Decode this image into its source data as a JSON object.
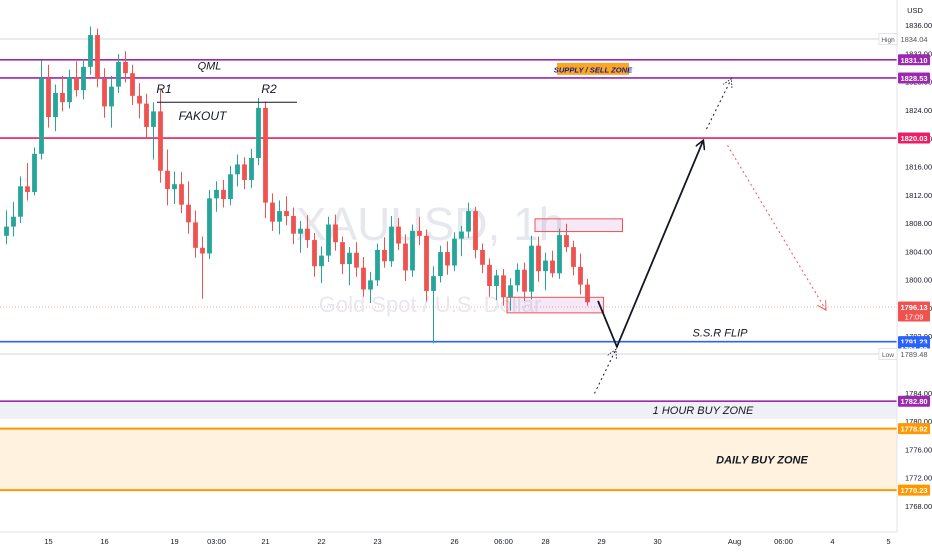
{
  "chart_data": {
    "type": "candlestick",
    "title": "",
    "watermark": {
      "symbol": "XAUUSD, 1h",
      "description": "Gold Spot / U.S. Dollar"
    },
    "currency": "USD",
    "colors": {
      "up": "#26a69a",
      "down": "#ef5350",
      "purple": "#9c27b0",
      "red_level": "#e91e63",
      "blue_level": "#2962ff",
      "orange_zone": "#ff9800",
      "zone_fill": "#fff3e0",
      "supply_label_bg": "#f9a825",
      "current_price_bg": "#ef5350",
      "path_arrow": "#131722"
    },
    "y_axis": {
      "range": [
        1766,
        1838
      ],
      "ticks": [
        1768,
        1772,
        1776,
        1780,
        1784,
        1792,
        1796,
        1800,
        1804,
        1808,
        1812,
        1816,
        1820,
        1824,
        1828,
        1832,
        1836
      ]
    },
    "x_axis": {
      "ticks": [
        {
          "label": "15",
          "bar": 6
        },
        {
          "label": "16",
          "bar": 14
        },
        {
          "label": "19",
          "bar": 24
        },
        {
          "label": "03:00",
          "bar": 30
        },
        {
          "label": "21",
          "bar": 37
        },
        {
          "label": "22",
          "bar": 45
        },
        {
          "label": "23",
          "bar": 53
        },
        {
          "label": "26",
          "bar": 64
        },
        {
          "label": "06:00",
          "bar": 71
        },
        {
          "label": "28",
          "bar": 77
        },
        {
          "label": "29",
          "bar": 85
        },
        {
          "label": "30",
          "bar": 93
        },
        {
          "label": "Aug",
          "bar": 104
        },
        {
          "label": "06:00",
          "bar": 111
        },
        {
          "label": "4",
          "bar": 118
        },
        {
          "label": "5",
          "bar": 126
        }
      ]
    },
    "bar_slot_count": 128,
    "candles": [
      [
        1806.2,
        1809.8,
        1805.0,
        1807.5
      ],
      [
        1807.5,
        1811.0,
        1806.1,
        1808.9
      ],
      [
        1808.9,
        1814.6,
        1808.0,
        1813.2
      ],
      [
        1813.2,
        1816.5,
        1811.2,
        1812.4
      ],
      [
        1812.4,
        1818.7,
        1811.9,
        1817.8
      ],
      [
        1817.8,
        1831.0,
        1817.0,
        1828.5
      ],
      [
        1828.5,
        1830.4,
        1821.5,
        1823.0
      ],
      [
        1823.0,
        1827.6,
        1821.0,
        1826.4
      ],
      [
        1826.4,
        1828.8,
        1823.8,
        1825.1
      ],
      [
        1825.1,
        1829.7,
        1824.2,
        1828.6
      ],
      [
        1828.6,
        1830.9,
        1825.9,
        1826.8
      ],
      [
        1826.8,
        1831.2,
        1825.5,
        1830.1
      ],
      [
        1830.1,
        1835.8,
        1829.0,
        1834.6
      ],
      [
        1834.6,
        1835.5,
        1827.2,
        1828.4
      ],
      [
        1828.4,
        1829.9,
        1822.9,
        1824.5
      ],
      [
        1824.5,
        1828.8,
        1821.5,
        1827.3
      ],
      [
        1827.3,
        1831.9,
        1826.4,
        1830.8
      ],
      [
        1830.8,
        1832.3,
        1827.9,
        1829.2
      ],
      [
        1829.2,
        1830.4,
        1824.7,
        1826.0
      ],
      [
        1826.0,
        1827.8,
        1822.8,
        1824.9
      ],
      [
        1824.9,
        1826.3,
        1820.1,
        1821.6
      ],
      [
        1821.6,
        1825.1,
        1817.0,
        1823.8
      ],
      [
        1823.8,
        1826.9,
        1813.7,
        1815.4
      ],
      [
        1815.4,
        1818.4,
        1810.5,
        1812.8
      ],
      [
        1812.8,
        1815.3,
        1810.7,
        1813.5
      ],
      [
        1813.5,
        1815.2,
        1809.4,
        1810.6
      ],
      [
        1810.6,
        1813.9,
        1806.5,
        1808.1
      ],
      [
        1808.1,
        1809.8,
        1803.1,
        1804.5
      ],
      [
        1804.5,
        1806.1,
        1797.3,
        1803.7
      ],
      [
        1803.7,
        1812.7,
        1802.9,
        1811.5
      ],
      [
        1811.5,
        1813.9,
        1809.6,
        1812.7
      ],
      [
        1812.7,
        1814.1,
        1810.2,
        1811.4
      ],
      [
        1811.4,
        1816.1,
        1810.5,
        1814.9
      ],
      [
        1814.9,
        1817.7,
        1813.2,
        1816.3
      ],
      [
        1816.3,
        1817.3,
        1812.8,
        1814.1
      ],
      [
        1814.1,
        1818.5,
        1813.0,
        1817.2
      ],
      [
        1817.2,
        1825.7,
        1816.2,
        1824.3
      ],
      [
        1824.3,
        1825.2,
        1808.7,
        1810.9
      ],
      [
        1810.9,
        1812.2,
        1806.9,
        1808.2
      ],
      [
        1808.2,
        1811.2,
        1806.4,
        1809.7
      ],
      [
        1809.7,
        1811.8,
        1807.7,
        1809.0
      ],
      [
        1809.0,
        1810.2,
        1805.0,
        1806.5
      ],
      [
        1806.5,
        1808.3,
        1803.8,
        1807.2
      ],
      [
        1807.2,
        1809.1,
        1804.5,
        1805.6
      ],
      [
        1805.6,
        1806.6,
        1800.4,
        1801.9
      ],
      [
        1801.9,
        1804.7,
        1799.5,
        1803.4
      ],
      [
        1803.4,
        1808.9,
        1802.5,
        1807.8
      ],
      [
        1807.8,
        1809.2,
        1804.1,
        1805.3
      ],
      [
        1805.3,
        1806.1,
        1800.8,
        1802.2
      ],
      [
        1802.2,
        1804.6,
        1799.2,
        1803.8
      ],
      [
        1803.8,
        1805.3,
        1800.4,
        1801.7
      ],
      [
        1801.7,
        1803.2,
        1797.6,
        1798.6
      ],
      [
        1798.6,
        1801.1,
        1796.7,
        1799.9
      ],
      [
        1799.9,
        1805.1,
        1799.1,
        1804.2
      ],
      [
        1804.2,
        1806.0,
        1801.7,
        1802.6
      ],
      [
        1802.6,
        1809.0,
        1801.8,
        1807.5
      ],
      [
        1807.5,
        1808.7,
        1804.2,
        1805.1
      ],
      [
        1805.1,
        1806.4,
        1799.8,
        1801.3
      ],
      [
        1801.3,
        1807.8,
        1800.4,
        1806.9
      ],
      [
        1806.9,
        1808.9,
        1804.9,
        1806.2
      ],
      [
        1806.2,
        1807.1,
        1796.9,
        1798.4
      ],
      [
        1798.4,
        1801.9,
        1791.0,
        1800.5
      ],
      [
        1800.5,
        1804.8,
        1799.6,
        1803.9
      ],
      [
        1803.9,
        1805.4,
        1800.7,
        1802.0
      ],
      [
        1802.0,
        1806.7,
        1801.2,
        1805.8
      ],
      [
        1805.8,
        1807.6,
        1803.3,
        1806.8
      ],
      [
        1806.8,
        1810.9,
        1805.9,
        1809.7
      ],
      [
        1809.7,
        1810.3,
        1803.0,
        1804.2
      ],
      [
        1804.2,
        1805.1,
        1800.9,
        1802.1
      ],
      [
        1802.1,
        1803.0,
        1797.6,
        1799.1
      ],
      [
        1799.1,
        1801.4,
        1797.1,
        1800.6
      ],
      [
        1800.6,
        1801.5,
        1796.3,
        1797.5
      ],
      [
        1797.5,
        1800.2,
        1795.6,
        1799.2
      ],
      [
        1799.2,
        1802.3,
        1798.3,
        1801.4
      ],
      [
        1801.4,
        1802.4,
        1797.0,
        1798.3
      ],
      [
        1798.3,
        1806.2,
        1797.2,
        1804.8
      ],
      [
        1804.8,
        1806.1,
        1799.7,
        1801.2
      ],
      [
        1801.2,
        1803.8,
        1798.5,
        1802.7
      ],
      [
        1802.7,
        1804.1,
        1800.3,
        1800.9
      ],
      [
        1800.9,
        1807.2,
        1800.1,
        1806.3
      ],
      [
        1806.3,
        1807.9,
        1803.9,
        1804.6
      ],
      [
        1804.6,
        1805.5,
        1800.6,
        1801.8
      ],
      [
        1801.8,
        1803.7,
        1797.9,
        1799.3
      ],
      [
        1799.3,
        1800.1,
        1796.3,
        1796.8
      ]
    ],
    "levels": [
      {
        "name": "high",
        "price": 1834.04,
        "label": "High",
        "style": "thin"
      },
      {
        "name": "qml",
        "price": 1831.1,
        "label": "QML",
        "color": "purple"
      },
      {
        "name": "supply",
        "price": 1828.53,
        "label": "SUPPLY / SELL ZONE",
        "color": "purple"
      },
      {
        "name": "sell-1820",
        "price": 1820.03,
        "color": "red_level"
      },
      {
        "name": "ssr-flip",
        "price": 1791.23,
        "label": "S.S.R FLIP",
        "color": "blue_level"
      },
      {
        "name": "low",
        "price": 1789.48,
        "label": "Low",
        "style": "thin"
      },
      {
        "name": "one-hour-buy",
        "price": 1782.8,
        "label": "1 HOUR BUY ZONE",
        "color": "purple"
      },
      {
        "name": "daily-top",
        "price": 1778.92,
        "color": "orange_zone"
      },
      {
        "name": "daily-bottom",
        "price": 1770.23,
        "color": "orange_zone"
      }
    ],
    "zones": [
      {
        "name": "daily-buy-zone",
        "from": 1770.23,
        "to": 1778.92,
        "label": "DAILY BUY ZONE"
      },
      {
        "name": "one-hour-buy-band",
        "from": 1780.3,
        "to": 1782.8,
        "label": ""
      }
    ],
    "annotations": [
      {
        "name": "r1",
        "text": "R1",
        "bar": 22.5,
        "price": 1826.4
      },
      {
        "name": "r2",
        "text": "R2",
        "bar": 37.5,
        "price": 1826.4
      },
      {
        "name": "fakeout",
        "text": "FAKOUT",
        "bar": 28,
        "price": 1822.6
      },
      {
        "name": "qml-label",
        "text": "QML",
        "bar": 29,
        "price": 1829.7
      }
    ],
    "resistance_line": {
      "from_bar": 21.5,
      "to_bar": 41.5,
      "price": 1825.1
    },
    "boxes": [
      {
        "name": "upper-rect",
        "from_bar": 76,
        "to_bar": 88.5,
        "high": 1808.6,
        "low": 1806.8
      },
      {
        "name": "lower-rect",
        "from_bar": 72,
        "to_bar": 85.8,
        "high": 1797.5,
        "low": 1795.3
      }
    ],
    "projection": {
      "path": [
        {
          "bar": 84.5,
          "price": 1797.0
        },
        {
          "bar": 87.2,
          "price": 1790.5
        },
        {
          "bar": 99.5,
          "price": 1819.6
        }
      ],
      "dotted_up": [
        {
          "bar": 84,
          "price": 1783.9
        },
        {
          "bar": 87,
          "price": 1790.0
        }
      ],
      "dotted_up2": [
        {
          "bar": 100,
          "price": 1821.3
        },
        {
          "bar": 103.5,
          "price": 1828.3
        }
      ],
      "dotted_down": [
        {
          "bar": 103,
          "price": 1819.0
        },
        {
          "bar": 117,
          "price": 1795.8
        }
      ]
    },
    "price_labels": [
      {
        "name": "high-label",
        "price": 1834.04,
        "text": "1834.04",
        "tag": "High",
        "bg": "#ffffff",
        "fg": "#555555"
      },
      {
        "name": "label-1831",
        "price": 1831.1,
        "text": "1831.10",
        "bg": "#9c27b0",
        "fg": "#ffffff"
      },
      {
        "name": "label-1828",
        "price": 1828.53,
        "text": "1828.53",
        "bg": "#9c27b0",
        "fg": "#ffffff"
      },
      {
        "name": "label-1820",
        "price": 1820.03,
        "text": "1820.03",
        "bg": "#e91e63",
        "fg": "#ffffff"
      },
      {
        "name": "current-price",
        "price": 1796.13,
        "text": "1796.13",
        "sub": "17:09",
        "bg": "#ef5350",
        "fg": "#ffffff"
      },
      {
        "name": "label-1791a",
        "price": 1791.23,
        "text": "1791.23",
        "bg": "#2962ff",
        "fg": "#ffffff"
      },
      {
        "name": "label-1791b",
        "price": 1790.2,
        "text": "1791.23",
        "bg": "#2962ff",
        "fg": "#ffffff"
      },
      {
        "name": "low-label",
        "price": 1789.48,
        "text": "1789.48",
        "tag": "Low",
        "bg": "#ffffff",
        "fg": "#555555"
      },
      {
        "name": "label-1782",
        "price": 1782.8,
        "text": "1782.80",
        "bg": "#9c27b0",
        "fg": "#ffffff"
      },
      {
        "name": "label-1778",
        "price": 1778.92,
        "text": "1778.92",
        "bg": "#ff9800",
        "fg": "#ffffff"
      },
      {
        "name": "label-1770",
        "price": 1770.23,
        "text": "1770.23",
        "bg": "#ff9800",
        "fg": "#ffffff"
      }
    ]
  }
}
